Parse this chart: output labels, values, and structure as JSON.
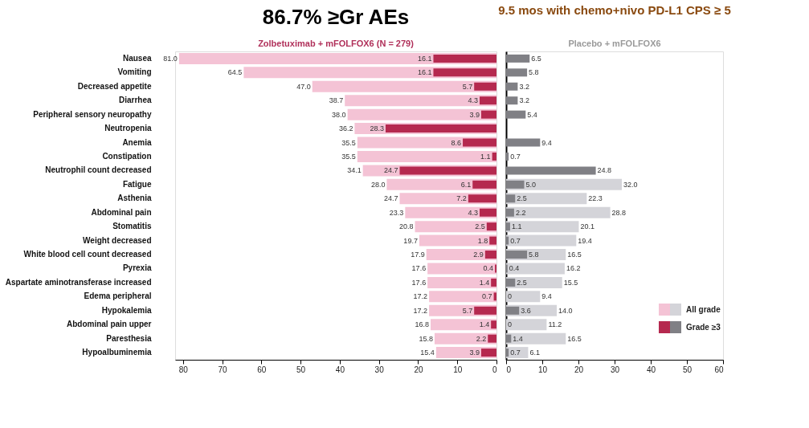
{
  "chart_data": [
    {
      "type": "bar",
      "orientation": "horizontal",
      "title": "Zolbetuximab + mFOLFOX6 (N = 279)",
      "annotations": [
        "86.7% ≥Gr AEs"
      ],
      "categories": [
        "Nausea",
        "Vomiting",
        "Decreased appetite",
        "Diarrhea",
        "Peripheral sensory neuropathy",
        "Neutropenia",
        "Anemia",
        "Constipation",
        "Neutrophil count decreased",
        "Fatigue",
        "Asthenia",
        "Abdominal pain",
        "Stomatitis",
        "Weight decreased",
        "White blood cell count decreased",
        "Pyrexia",
        "Aspartate aminotransferase increased",
        "Edema peripheral",
        "Hypokalemia",
        "Abdominal pain upper",
        "Paresthesia",
        "Hypoalbuminemia"
      ],
      "series": [
        {
          "color": "#f4c3d5",
          "values": [
            81.0,
            64.5,
            47.0,
            38.7,
            38.0,
            36.2,
            35.5,
            35.5,
            34.1,
            28.0,
            24.7,
            23.3,
            20.8,
            19.7,
            17.9,
            17.6,
            17.6,
            17.2,
            17.2,
            16.8,
            15.8,
            15.4
          ],
          "value_labels": [
            "81.0",
            "64.5",
            "47.0",
            "38.7",
            "38.0",
            "36.2",
            "35.5",
            "35.5",
            "34.1",
            "28.0",
            "24.7",
            "23.3",
            "20.8",
            "19.7",
            "17.9",
            "17.6",
            "17.6",
            "17.2",
            "17.2",
            "16.8",
            "15.8",
            "15.4"
          ]
        },
        {
          "color": "#b5294f",
          "values": [
            16.1,
            16.1,
            5.7,
            4.3,
            3.9,
            28.3,
            8.6,
            1.1,
            24.7,
            6.1,
            7.2,
            4.3,
            2.5,
            1.8,
            2.9,
            0.4,
            1.4,
            0.7,
            5.7,
            1.4,
            2.2,
            3.9
          ],
          "value_labels": [
            "16.1",
            "16.1",
            "5.7",
            "4.3",
            "3.9",
            "28.3",
            "8.6",
            "1.1",
            "24.7",
            "6.1",
            "7.2",
            "4.3",
            "2.5",
            "1.8",
            "2.9",
            "0.4",
            "1.4",
            "0.7",
            "5.7",
            "1.4",
            "2.2",
            "3.9"
          ]
        }
      ],
      "xlim": [
        82,
        0
      ],
      "xticks": [
        80,
        70,
        60,
        50,
        40,
        30,
        20,
        10,
        0
      ],
      "grid": false,
      "legend": false
    },
    {
      "type": "bar",
      "orientation": "horizontal",
      "title": "Placebo + mFOLFOX6",
      "annotations": [
        "9.5 mos with chemo+nivo PD-L1 CPS ≥ 5"
      ],
      "categories": [
        null,
        null,
        null,
        null,
        null,
        null,
        null,
        null,
        null,
        null,
        null,
        null,
        null,
        null,
        null,
        null,
        null,
        null,
        null,
        null,
        null,
        null
      ],
      "series": [
        {
          "name": "All grade",
          "color": "#d4d4d9",
          "values": [
            null,
            null,
            null,
            null,
            null,
            null,
            null,
            null,
            null,
            32.0,
            22.3,
            28.8,
            20.1,
            19.4,
            16.5,
            16.2,
            15.5,
            9.4,
            14.0,
            11.2,
            16.5,
            6.1
          ],
          "value_labels": [
            null,
            null,
            null,
            null,
            null,
            null,
            null,
            null,
            null,
            "32.0",
            "22.3",
            "28.8",
            "20.1",
            "19.4",
            "16.5",
            "16.2",
            "15.5",
            "9.4",
            "14.0",
            "11.2",
            "16.5",
            "6.1"
          ]
        },
        {
          "name": "Grade ≥3",
          "color": "#808085",
          "values": [
            6.5,
            5.8,
            3.2,
            3.2,
            5.4,
            null,
            9.4,
            0.7,
            24.8,
            5.0,
            2.5,
            2.2,
            1.1,
            0.7,
            5.8,
            0.4,
            2.5,
            0,
            3.6,
            0,
            1.4,
            0.7
          ],
          "value_labels": [
            "6.5",
            "5.8",
            "3.2",
            "3.2",
            "5.4",
            null,
            "9.4",
            "0.7",
            "24.8",
            "5.0",
            "2.5",
            "2.2",
            "1.1",
            "0.7",
            "5.8",
            "0.4",
            "2.5",
            "0",
            "3.6",
            "0",
            "1.4",
            "0.7"
          ]
        }
      ],
      "xlim": [
        0,
        60
      ],
      "xticks": [
        0,
        10,
        20,
        30,
        40,
        50,
        60
      ],
      "tick_labels": "x",
      "grid": false,
      "legend": "bottom right"
    }
  ]
}
